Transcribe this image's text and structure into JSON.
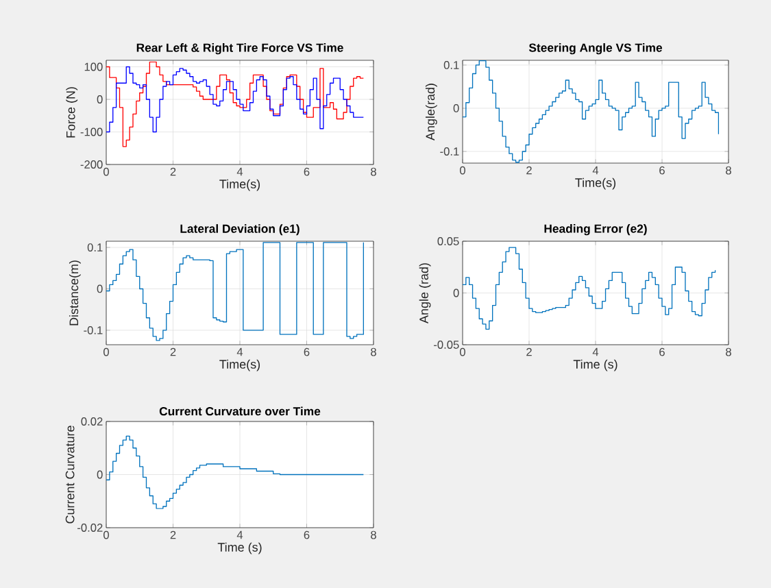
{
  "chart_data": [
    {
      "type": "step",
      "title": "Rear Left & Right Tire Force VS Time",
      "xlabel": "Time(s)",
      "ylabel": "Force (N)",
      "xlim": [
        0,
        8
      ],
      "ylim": [
        -200,
        120
      ],
      "xticks": [
        0,
        2,
        4,
        6,
        8
      ],
      "yticks": [
        -200,
        -100,
        0,
        100
      ],
      "grid": true,
      "x": [
        0,
        0.1,
        0.2,
        0.3,
        0.4,
        0.5,
        0.6,
        0.7,
        0.8,
        0.9,
        1.0,
        1.1,
        1.2,
        1.3,
        1.4,
        1.5,
        1.6,
        1.7,
        1.8,
        1.9,
        2.0,
        2.1,
        2.2,
        2.3,
        2.4,
        2.5,
        2.6,
        2.7,
        2.8,
        2.9,
        3.0,
        3.1,
        3.2,
        3.3,
        3.4,
        3.5,
        3.6,
        3.7,
        3.8,
        3.9,
        4.0,
        4.1,
        4.2,
        4.3,
        4.4,
        4.5,
        4.6,
        4.7,
        4.8,
        4.9,
        5.0,
        5.1,
        5.2,
        5.3,
        5.4,
        5.5,
        5.6,
        5.7,
        5.8,
        5.9,
        6.0,
        6.1,
        6.2,
        6.3,
        6.4,
        6.5,
        6.6,
        6.7,
        6.8,
        6.9,
        7.0,
        7.1,
        7.2,
        7.3,
        7.4,
        7.5,
        7.6,
        7.7
      ],
      "series": [
        {
          "color": "#ff0000",
          "values": [
            100,
            67,
            67,
            35,
            -25,
            -145,
            -125,
            -85,
            -45,
            -5,
            20,
            40,
            80,
            115,
            115,
            100,
            75,
            55,
            45,
            45,
            45,
            45,
            45,
            45,
            45,
            45,
            38,
            25,
            10,
            0,
            0,
            0,
            0,
            40,
            75,
            75,
            60,
            20,
            -10,
            -20,
            -25,
            -25,
            0,
            50,
            75,
            75,
            75,
            40,
            0,
            -35,
            -45,
            -45,
            -15,
            35,
            70,
            75,
            75,
            40,
            0,
            -40,
            -55,
            -55,
            -25,
            -25,
            95,
            -25,
            -25,
            -10,
            -30,
            -60,
            -60,
            -40,
            0,
            40,
            65,
            70,
            65,
            65
          ]
        },
        {
          "color": "#0000ff",
          "values": [
            -100,
            -70,
            -25,
            50,
            null,
            null,
            100,
            80,
            50,
            45,
            35,
            45,
            0,
            -55,
            -100,
            -55,
            0,
            40,
            55,
            45,
            75,
            85,
            95,
            90,
            80,
            70,
            55,
            50,
            55,
            60,
            40,
            15,
            -15,
            -20,
            -5,
            30,
            55,
            55,
            30,
            0,
            -15,
            -35,
            -35,
            -10,
            25,
            60,
            70,
            60,
            10,
            -30,
            -50,
            -50,
            -20,
            30,
            65,
            70,
            45,
            0,
            -30,
            -45,
            -20,
            30,
            65,
            0,
            -90,
            -20,
            15,
            50,
            65,
            65,
            30,
            0,
            -20,
            -40,
            -55,
            -55,
            -55,
            -55
          ]
        }
      ]
    },
    {
      "type": "step",
      "title": "Steering Angle VS Time",
      "xlabel": "Time(s)",
      "ylabel": "Angle(rad)",
      "xlim": [
        0,
        8
      ],
      "ylim": [
        -0.127,
        0.111
      ],
      "xticks": [
        0,
        2,
        4,
        6,
        8
      ],
      "yticks": [
        -0.1,
        0,
        0.1
      ],
      "grid": true,
      "x": [
        0,
        0.1,
        0.2,
        0.3,
        0.4,
        0.5,
        0.6,
        0.7,
        0.8,
        0.9,
        1.0,
        1.1,
        1.2,
        1.3,
        1.4,
        1.5,
        1.6,
        1.7,
        1.8,
        1.9,
        2.0,
        2.1,
        2.2,
        2.3,
        2.4,
        2.5,
        2.6,
        2.7,
        2.8,
        2.9,
        3.0,
        3.1,
        3.2,
        3.3,
        3.4,
        3.5,
        3.6,
        3.7,
        3.8,
        3.9,
        4.0,
        4.1,
        4.2,
        4.3,
        4.4,
        4.5,
        4.6,
        4.7,
        4.8,
        4.9,
        5.0,
        5.1,
        5.2,
        5.3,
        5.4,
        5.5,
        5.6,
        5.7,
        5.8,
        5.9,
        6.0,
        6.1,
        6.2,
        6.3,
        6.4,
        6.5,
        6.6,
        6.7,
        6.8,
        6.9,
        7.0,
        7.1,
        7.2,
        7.3,
        7.4,
        7.5,
        7.6,
        7.7
      ],
      "series": [
        {
          "color": "#0072bd",
          "values": [
            -0.02,
            0.013,
            0.047,
            0.08,
            0.1,
            0.11,
            0.11,
            0.095,
            0.065,
            0.035,
            0,
            -0.03,
            -0.065,
            -0.09,
            -0.105,
            -0.12,
            -0.125,
            -0.12,
            -0.1,
            -0.085,
            -0.06,
            -0.045,
            -0.035,
            -0.025,
            -0.015,
            -0.005,
            0.005,
            0.015,
            0.025,
            0.035,
            0.04,
            0.065,
            0.045,
            0.035,
            0.02,
            0.015,
            -0.025,
            -0.005,
            0.005,
            0.01,
            0.02,
            0.065,
            0.035,
            0.02,
            0.005,
            0,
            -0.005,
            -0.05,
            -0.02,
            -0.01,
            0,
            0.005,
            0.06,
            0.025,
            0.015,
            -0.005,
            -0.02,
            -0.065,
            -0.025,
            -0.005,
            0,
            0.005,
            0.06,
            0.06,
            0.06,
            -0.02,
            -0.07,
            -0.035,
            -0.025,
            -0.005,
            0,
            0.005,
            0.06,
            0.025,
            0.01,
            -0.005,
            -0.01,
            -0.06
          ]
        }
      ]
    },
    {
      "type": "step",
      "title": "Lateral Deviation (e1)",
      "xlabel": "Time(s)",
      "ylabel": "Distance(m)",
      "xlim": [
        0,
        8
      ],
      "ylim": [
        -0.135,
        0.115
      ],
      "xticks": [
        0,
        2,
        4,
        6,
        8
      ],
      "yticks": [
        -0.1,
        0,
        0.1
      ],
      "grid": true,
      "x": [
        0,
        0.1,
        0.2,
        0.3,
        0.4,
        0.5,
        0.6,
        0.7,
        0.8,
        0.9,
        1.0,
        1.1,
        1.2,
        1.3,
        1.4,
        1.5,
        1.6,
        1.7,
        1.8,
        1.9,
        2.0,
        2.1,
        2.2,
        2.3,
        2.4,
        2.5,
        2.6,
        2.7,
        2.8,
        2.9,
        3.0,
        3.1,
        3.2,
        3.3,
        3.4,
        3.5,
        3.6,
        3.7,
        3.8,
        3.9,
        4.0,
        4.1,
        4.2,
        4.3,
        4.4,
        4.5,
        4.6,
        4.7,
        4.8,
        4.9,
        5.0,
        5.1,
        5.2,
        5.3,
        5.4,
        5.5,
        5.6,
        5.7,
        5.8,
        5.9,
        6.0,
        6.1,
        6.2,
        6.3,
        6.4,
        6.5,
        6.6,
        6.7,
        6.8,
        6.9,
        7.0,
        7.1,
        7.2,
        7.3,
        7.4,
        7.5,
        7.6,
        7.7
      ],
      "series": [
        {
          "color": "#0072bd",
          "values": [
            -0.005,
            0.01,
            0.02,
            0.035,
            0.06,
            0.08,
            0.09,
            0.095,
            0.07,
            0.03,
            0,
            -0.035,
            -0.07,
            -0.095,
            -0.115,
            -0.125,
            -0.12,
            -0.1,
            -0.06,
            -0.03,
            0.01,
            0.04,
            0.06,
            0.075,
            0.08,
            0.075,
            0.07,
            0.07,
            0.07,
            0.07,
            0.07,
            0.068,
            -0.07,
            -0.075,
            -0.078,
            -0.08,
            0.085,
            0.09,
            0.09,
            0.095,
            0.095,
            -0.1,
            -0.1,
            -0.1,
            -0.1,
            -0.1,
            -0.1,
            0.112,
            0.112,
            0.112,
            0.112,
            0.112,
            -0.11,
            -0.11,
            -0.11,
            -0.11,
            -0.11,
            0.112,
            0.112,
            0.112,
            0.112,
            0.112,
            -0.11,
            -0.11,
            -0.11,
            0.112,
            0.112,
            0.112,
            0.112,
            0.112,
            0.112,
            0.112,
            -0.115,
            -0.12,
            -0.115,
            -0.11,
            -0.11,
            0.112
          ]
        }
      ]
    },
    {
      "type": "step",
      "title": "Heading Error (e2)",
      "xlabel": "Time (s)",
      "ylabel": "Angle (rad)",
      "xlim": [
        0,
        8
      ],
      "ylim": [
        -0.05,
        0.05
      ],
      "xticks": [
        0,
        2,
        4,
        6,
        8
      ],
      "yticks": [
        -0.05,
        0,
        0.05
      ],
      "grid": true,
      "x": [
        0,
        0.1,
        0.2,
        0.3,
        0.4,
        0.5,
        0.6,
        0.7,
        0.8,
        0.9,
        1.0,
        1.1,
        1.2,
        1.3,
        1.4,
        1.5,
        1.6,
        1.7,
        1.8,
        1.9,
        2.0,
        2.1,
        2.2,
        2.3,
        2.4,
        2.5,
        2.6,
        2.7,
        2.8,
        2.9,
        3.0,
        3.1,
        3.2,
        3.3,
        3.4,
        3.5,
        3.6,
        3.7,
        3.8,
        3.9,
        4.0,
        4.1,
        4.2,
        4.3,
        4.4,
        4.5,
        4.6,
        4.7,
        4.8,
        4.9,
        5.0,
        5.1,
        5.2,
        5.3,
        5.4,
        5.5,
        5.6,
        5.7,
        5.8,
        5.9,
        6.0,
        6.1,
        6.2,
        6.3,
        6.4,
        6.5,
        6.6,
        6.7,
        6.8,
        6.9,
        7.0,
        7.1,
        7.2,
        7.3,
        7.4,
        7.5,
        7.6
      ],
      "series": [
        {
          "color": "#0072bd",
          "values": [
            0.008,
            0.015,
            0.008,
            -0.005,
            -0.015,
            -0.025,
            -0.03,
            -0.035,
            -0.027,
            -0.012,
            0.008,
            0.02,
            0.03,
            0.04,
            0.044,
            0.044,
            0.038,
            0.023,
            0.01,
            -0.005,
            -0.015,
            -0.018,
            -0.019,
            -0.019,
            -0.018,
            -0.017,
            -0.016,
            -0.015,
            -0.014,
            -0.014,
            -0.014,
            -0.012,
            -0.005,
            0.003,
            0.01,
            0.016,
            0.012,
            0.005,
            -0.003,
            -0.01,
            -0.015,
            -0.015,
            -0.008,
            0.004,
            0.012,
            0.02,
            0.02,
            0.02,
            0.01,
            -0.005,
            -0.013,
            -0.02,
            -0.02,
            -0.01,
            0.004,
            0.012,
            0.02,
            0.015,
            0.008,
            -0.005,
            -0.013,
            -0.021,
            -0.015,
            0.008,
            0.025,
            0.025,
            0.02,
            0.002,
            -0.008,
            -0.018,
            -0.021,
            -0.022,
            -0.01,
            0.003,
            0.015,
            0.02,
            0.022
          ]
        }
      ]
    },
    {
      "type": "step",
      "title": "Current Curvature over Time",
      "xlabel": "Time (s)",
      "ylabel": "Current Curvature",
      "xlim": [
        0,
        8
      ],
      "ylim": [
        -0.02,
        0.02
      ],
      "xticks": [
        0,
        2,
        4,
        6,
        8
      ],
      "yticks": [
        -0.02,
        0,
        0.02
      ],
      "grid": true,
      "x": [
        0,
        0.1,
        0.2,
        0.3,
        0.4,
        0.5,
        0.6,
        0.7,
        0.8,
        0.9,
        1.0,
        1.1,
        1.2,
        1.3,
        1.4,
        1.5,
        1.6,
        1.7,
        1.8,
        1.9,
        2.0,
        2.1,
        2.2,
        2.3,
        2.4,
        2.5,
        2.6,
        2.7,
        2.8,
        2.9,
        3.0,
        3.5,
        4.0,
        4.5,
        5.0,
        5.2,
        7.7
      ],
      "series": [
        {
          "color": "#0072bd",
          "values": [
            -0.002,
            0.001,
            0.005,
            0.008,
            0.011,
            0.013,
            0.0145,
            0.013,
            0.01,
            0.007,
            0.003,
            -0.001,
            -0.005,
            -0.008,
            -0.011,
            -0.0128,
            -0.0128,
            -0.012,
            -0.01,
            -0.009,
            -0.007,
            -0.0055,
            -0.004,
            -0.003,
            -0.001,
            0,
            0.0015,
            0.0025,
            0.0035,
            0.0035,
            0.004,
            0.003,
            0.0022,
            0.0013,
            0.0003,
            0,
            0
          ]
        }
      ]
    }
  ]
}
